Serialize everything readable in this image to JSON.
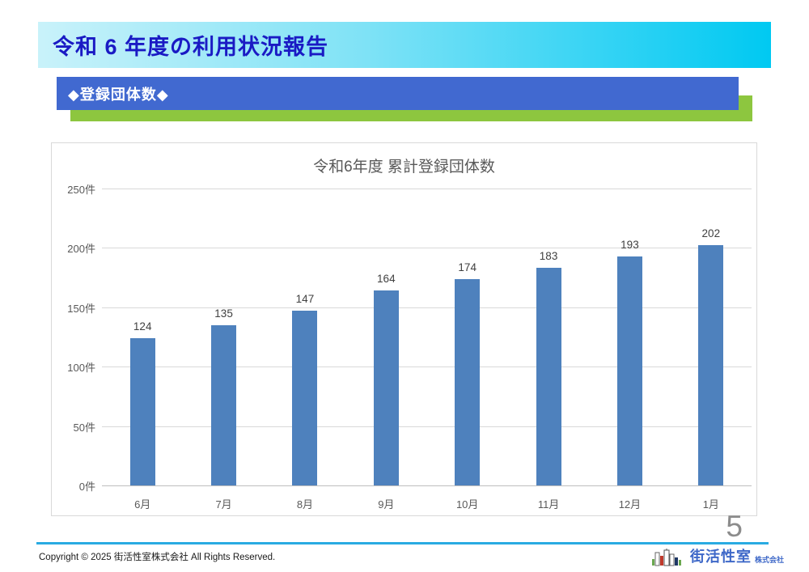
{
  "slide": {
    "title": "令和 6 年度の利用状況報告",
    "section_banner": "◆登録団体数◆",
    "page_number": "5",
    "footer_copyright": "Copyright © 2025 街活性室株式会社 All Rights Reserved.",
    "logo": {
      "name": "街活性室",
      "suffix": "株式会社"
    }
  },
  "chart_data": {
    "type": "bar",
    "title": "令和6年度 累計登録団体数",
    "categories": [
      "6月",
      "7月",
      "8月",
      "9月",
      "10月",
      "11月",
      "12月",
      "1月"
    ],
    "values": [
      124,
      135,
      147,
      164,
      174,
      183,
      193,
      202
    ],
    "y_ticks": [
      "0件",
      "50件",
      "100件",
      "150件",
      "200件",
      "250件"
    ],
    "ylim": [
      0,
      250
    ],
    "y_tick_step": 50,
    "xlabel": "",
    "ylabel": "",
    "grid": true,
    "data_labels": true,
    "legend": "none",
    "bar_color": "#4e81bd"
  },
  "colors": {
    "header_gradient_start": "#c9f2fa",
    "header_gradient_end": "#00c9f2",
    "header_title_text": "#1a1ac4",
    "banner_blue": "#4169d0",
    "accent_green": "#8dc63f",
    "bar_blue": "#4e81bd",
    "gridline_gray": "#d9d9d9",
    "axis_text_gray": "#595959",
    "footer_line_cyan": "#29abe2",
    "logo_blue": "#3e68c8"
  }
}
